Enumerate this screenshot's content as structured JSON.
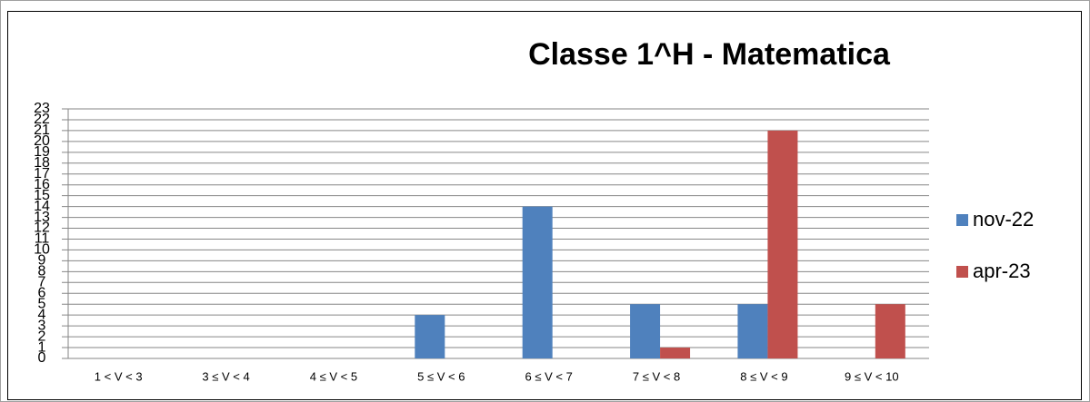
{
  "chart_data": {
    "type": "bar",
    "title": "Classe 1^H - Matematica",
    "categories": [
      "1 < V < 3",
      "3 ≤ V < 4",
      "4 ≤ V < 5",
      "5 ≤ V < 6",
      "6 ≤ V < 7",
      "7 ≤ V < 8",
      "8 ≤ V < 9",
      "9 ≤ V < 10"
    ],
    "series": [
      {
        "name": "nov-22",
        "color": "#4f81bd",
        "values": [
          0,
          0,
          0,
          4,
          14,
          5,
          5,
          0
        ]
      },
      {
        "name": "apr-23",
        "color": "#c0504d",
        "values": [
          0,
          0,
          0,
          0,
          0,
          1,
          21,
          5
        ]
      }
    ],
    "ylim": [
      0,
      23
    ],
    "yticks": [
      0,
      1,
      2,
      3,
      4,
      5,
      6,
      7,
      8,
      9,
      10,
      11,
      12,
      13,
      14,
      15,
      16,
      17,
      18,
      19,
      20,
      21,
      22,
      23
    ],
    "grid": true,
    "legend": "right"
  }
}
